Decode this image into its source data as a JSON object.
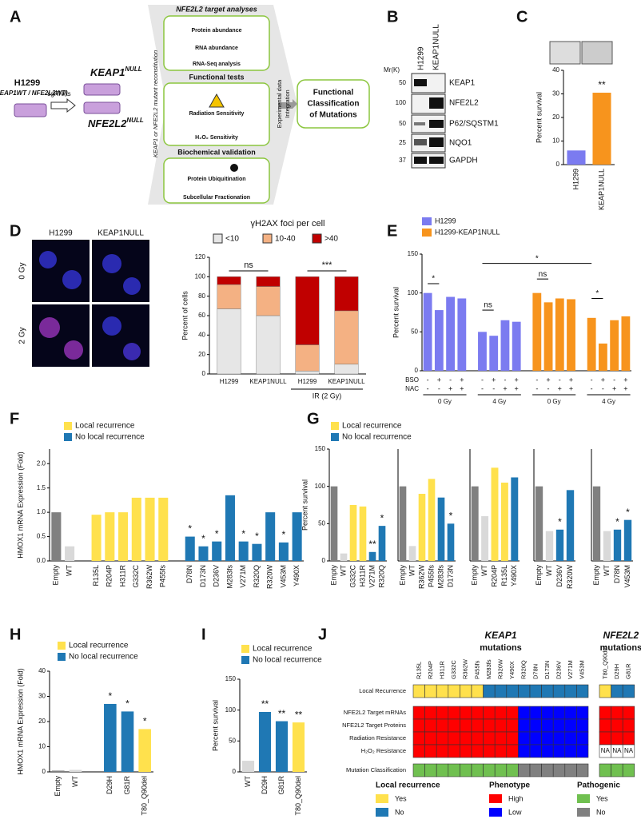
{
  "panel_labels": [
    "A",
    "B",
    "C",
    "D",
    "E",
    "F",
    "G",
    "H",
    "I",
    "J"
  ],
  "diagram": {
    "cell_line": "H1299",
    "genotype": "(KEAP1WT / NFE2L2WT)",
    "sgrna": "sgRNAs",
    "keap1_null": {
      "gene": "KEAP1",
      "sup": "NULL"
    },
    "nfe2l2_null": {
      "gene": "NFE2L2",
      "sup": "NULL"
    },
    "reconstitution": "KEAP1 or NFE2L2 mutant reconstitution",
    "boxes": [
      {
        "title": "NFE2L2 target analyses",
        "items": [
          "Protein abundance",
          "RNA abundance",
          "RNA-Seq analysis"
        ]
      },
      {
        "title": "Functional tests",
        "items": [
          "Radiation Sensitivity",
          "H₂O₂ Sensitivity"
        ]
      },
      {
        "title": "Biochemical validation",
        "items": [
          "Protein Ubiquitination",
          "Subcellular Fractionation"
        ]
      }
    ],
    "integration": [
      "Experimental data",
      "Integration"
    ],
    "result": [
      "Functional",
      "Classification",
      "of Mutations"
    ]
  },
  "blot": {
    "lanes": [
      "H1299",
      "KEAP1NULL"
    ],
    "mw_label": "Mr(K)",
    "bands": [
      {
        "mw": 50,
        "name": "KEAP1"
      },
      {
        "mw": 100,
        "name": "NFE2L2"
      },
      {
        "mw": 50,
        "name": "P62/SQSTM1"
      },
      {
        "mw": 25,
        "name": "NQO1"
      },
      {
        "mw": 37,
        "name": "GAPDH"
      }
    ]
  },
  "micrographs": {
    "columns": [
      "H1299",
      "KEAP1NULL"
    ],
    "rows": [
      "0 Gy",
      "2 Gy"
    ]
  },
  "chart_data": [
    {
      "type": "bar",
      "categories": [
        "H1299",
        "KEAP1NULL"
      ],
      "values": [
        6,
        30.5
      ],
      "colors": [
        "#7b7bf0",
        "#f7941d"
      ],
      "ylim": [
        0,
        40
      ],
      "yticks": [
        0,
        10,
        20,
        30,
        40
      ],
      "y_label": "Percent survival",
      "significance": [
        null,
        "**"
      ]
    },
    {
      "type": "stacked_bar",
      "title": "γH2AX foci per cell",
      "categories": [
        "H1299",
        "KEAP1NULL",
        "H1299",
        "KEAP1NULL"
      ],
      "series": [
        {
          "name": "<10",
          "color": "#e6e6e6",
          "values": [
            67,
            60,
            3,
            10
          ]
        },
        {
          "name": "10-40",
          "color": "#f4b183",
          "values": [
            25,
            30,
            27,
            55
          ]
        },
        {
          "name": ">40",
          "color": "#c00000",
          "values": [
            8,
            10,
            70,
            35
          ]
        }
      ],
      "ylim": [
        0,
        120
      ],
      "yticks": [
        0,
        20,
        40,
        60,
        80,
        100,
        120
      ],
      "y_label": "Percent of cells",
      "group_label": "IR (2 Gy)",
      "annotations": [
        "ns",
        "***"
      ]
    },
    {
      "type": "grouped_bar",
      "series": [
        {
          "name": "H1299",
          "color": "#7b7bf0",
          "values": [
            100,
            78,
            95,
            93,
            50,
            45,
            65,
            63
          ]
        },
        {
          "name": "H1299-KEAP1NULL",
          "color": "#f7941d",
          "values": [
            100,
            88,
            93,
            92,
            68,
            35,
            65,
            70
          ]
        }
      ],
      "treatments": [
        {
          "name": "BSO",
          "values": [
            "-",
            "+",
            "-",
            "+",
            "-",
            "+",
            "-",
            "+",
            "-",
            "+",
            "-",
            "+",
            "-",
            "+",
            "-",
            "+"
          ]
        },
        {
          "name": "NAC",
          "values": [
            "-",
            "-",
            "+",
            "+",
            "-",
            "-",
            "+",
            "+",
            "-",
            "-",
            "+",
            "+",
            "-",
            "-",
            "+",
            "+"
          ]
        }
      ],
      "groups": [
        "0 Gy",
        "4 Gy",
        "0 Gy",
        "4 Gy"
      ],
      "ylim": [
        0,
        150
      ],
      "yticks": [
        0,
        50,
        100,
        150
      ],
      "y_label": "Percent survival",
      "annotations": [
        "*",
        "ns",
        "ns",
        "*",
        "*"
      ]
    },
    {
      "type": "bar",
      "categories": [
        "Empty",
        "WT",
        null,
        "R135L",
        "R204P",
        "H311R",
        "G332C",
        "R362W",
        "P455fs",
        null,
        "D78N",
        "D173N",
        "D236V",
        "M283fs",
        "V271M",
        "R320Q",
        "R320W",
        "V453M",
        "Y490X"
      ],
      "values": [
        1.0,
        0.3,
        null,
        0.95,
        1.0,
        1.0,
        1.3,
        1.3,
        1.3,
        null,
        0.5,
        0.3,
        0.4,
        1.35,
        0.4,
        0.35,
        1.0,
        0.38,
        1.0
      ],
      "colors": [
        "#808080",
        "#d9d9d9",
        null,
        "#ffe14d",
        "#ffe14d",
        "#ffe14d",
        "#ffe14d",
        "#ffe14d",
        "#ffe14d",
        null,
        "#1f78b4",
        "#1f78b4",
        "#1f78b4",
        "#1f78b4",
        "#1f78b4",
        "#1f78b4",
        "#1f78b4",
        "#1f78b4",
        "#1f78b4"
      ],
      "significance": [
        null,
        null,
        null,
        null,
        null,
        null,
        null,
        null,
        null,
        null,
        "*",
        "*",
        "*",
        null,
        "*",
        "*",
        null,
        "*",
        null
      ],
      "ylim": [
        0,
        2.3
      ],
      "yticks": [
        {
          "value": 0,
          "label": "0.0"
        },
        0.5,
        {
          "value": 1,
          "label": "1.0"
        },
        1.5,
        {
          "value": 2,
          "label": "2.0"
        }
      ],
      "y_label": "HMOX1 mRNA Expression (Fold)",
      "legend": [
        {
          "name": "Local recurrence",
          "color": "#ffe14d"
        },
        {
          "name": "No local recurrence",
          "color": "#1f78b4"
        }
      ]
    },
    {
      "type": "bar",
      "categories": [
        "Empty",
        "WT",
        "G332C",
        "H311R",
        "V271M",
        "R320Q"
      ],
      "values": [
        100,
        10,
        75,
        73,
        12,
        47
      ],
      "colors": [
        "#808080",
        "#d9d9d9",
        "#ffe14d",
        "#ffe14d",
        "#1f78b4",
        "#1f78b4"
      ],
      "significance": [
        null,
        null,
        null,
        null,
        "**",
        "*"
      ],
      "ylim": [
        0,
        150
      ],
      "yticks": [
        0,
        50,
        100,
        150
      ],
      "y_label": "Percent survival",
      "legend": [
        {
          "name": "Local recurrence",
          "color": "#ffe14d"
        },
        {
          "name": "No local recurrence",
          "color": "#1f78b4"
        }
      ]
    },
    {
      "type": "bar",
      "categories": [
        "Empty",
        "WT",
        "R362W",
        "P455fs",
        "M283fs",
        "D173N"
      ],
      "values": [
        100,
        20,
        90,
        110,
        85,
        50
      ],
      "colors": [
        "#808080",
        "#d9d9d9",
        "#ffe14d",
        "#ffe14d",
        "#1f78b4",
        "#1f78b4"
      ],
      "significance": [
        null,
        null,
        null,
        null,
        null,
        "*"
      ],
      "ylim": [
        0,
        150
      ]
    },
    {
      "type": "bar",
      "categories": [
        "Empty",
        "WT",
        "R204P",
        "R135L",
        "Y490X"
      ],
      "values": [
        100,
        60,
        125,
        105,
        112
      ],
      "colors": [
        "#808080",
        "#d9d9d9",
        "#ffe14d",
        "#ffe14d",
        "#1f78b4"
      ],
      "ylim": [
        0,
        150
      ]
    },
    {
      "type": "bar",
      "categories": [
        "Empty",
        "WT",
        "D236V",
        "R320W"
      ],
      "values": [
        100,
        40,
        42,
        95
      ],
      "colors": [
        "#808080",
        "#d9d9d9",
        "#1f78b4",
        "#1f78b4"
      ],
      "significance": [
        null,
        null,
        "*",
        null
      ],
      "ylim": [
        0,
        150
      ]
    },
    {
      "type": "bar",
      "categories": [
        "Empty",
        "WT",
        "D78N",
        "V453M"
      ],
      "values": [
        100,
        40,
        42,
        55
      ],
      "colors": [
        "#808080",
        "#d9d9d9",
        "#1f78b4",
        "#1f78b4"
      ],
      "significance": [
        null,
        null,
        "*",
        "*"
      ],
      "ylim": [
        0,
        150
      ]
    },
    {
      "type": "bar",
      "categories": [
        "Empty",
        "WT",
        null,
        "D29H",
        "G81R",
        "T80_Q90del"
      ],
      "values": [
        0.5,
        0.8,
        null,
        27,
        24,
        17
      ],
      "colors": [
        "#808080",
        "#d9d9d9",
        null,
        "#1f78b4",
        "#1f78b4",
        "#ffe14d"
      ],
      "significance": [
        null,
        null,
        null,
        "*",
        "*",
        "*"
      ],
      "ylim": [
        0,
        40
      ],
      "yticks": [
        0,
        10,
        20,
        30,
        40
      ],
      "y_label": "HMOX1 mRNA Expression (Fold)",
      "legend": [
        {
          "name": "Local recurrence",
          "color": "#ffe14d"
        },
        {
          "name": "No local recurrence",
          "color": "#1f78b4"
        }
      ]
    },
    {
      "type": "bar",
      "categories": [
        "WT",
        "D29H",
        "G81R",
        "T80_Q90del"
      ],
      "values": [
        18,
        97,
        82,
        80
      ],
      "colors": [
        "#d9d9d9",
        "#1f78b4",
        "#1f78b4",
        "#ffe14d"
      ],
      "significance": [
        null,
        "**",
        "**",
        "**"
      ],
      "ylim": [
        0,
        150
      ],
      "yticks": [
        0,
        50,
        100,
        150
      ],
      "y_label": "Percent survival",
      "legend": [
        {
          "name": "Local recurrence",
          "color": "#ffe14d"
        },
        {
          "name": "No local recurrence",
          "color": "#1f78b4"
        }
      ]
    }
  ],
  "heatmap": {
    "keap1_title": [
      "KEAP1",
      "mutations"
    ],
    "nfe2l2_title": [
      "NFE2L2",
      "mutations"
    ],
    "keap1_columns": [
      "R135L",
      "R204P",
      "H311R",
      "G332C",
      "R362W",
      "P455fs",
      "M283fs",
      "R320W",
      "Y490X",
      "R320Q",
      "D78N",
      "D173N",
      "D236V",
      "V271M",
      "V453M"
    ],
    "nfe2l2_columns": [
      "T80_Q90del",
      "D29H",
      "G81R"
    ],
    "rows": [
      {
        "name": "Local Recurrence",
        "keap1": [
          "Yes",
          "Yes",
          "Yes",
          "Yes",
          "Yes",
          "Yes",
          "No",
          "No",
          "No",
          "No",
          "No",
          "No",
          "No",
          "No",
          "No"
        ],
        "nfe2l2": [
          "Yes",
          "No",
          "No"
        ]
      },
      {
        "name": "NFE2L2 Target mRNAs",
        "keap1": [
          "High",
          "High",
          "High",
          "High",
          "High",
          "High",
          "High",
          "High",
          "High",
          "Low",
          "Low",
          "Low",
          "Low",
          "Low",
          "Low"
        ],
        "nfe2l2": [
          "High",
          "High",
          "High"
        ]
      },
      {
        "name": "NFE2L2 Target Proteins",
        "keap1": [
          "High",
          "High",
          "High",
          "High",
          "High",
          "High",
          "High",
          "High",
          "High",
          "Low",
          "Low",
          "Low",
          "Low",
          "Low",
          "Low"
        ],
        "nfe2l2": [
          "High",
          "High",
          "High"
        ]
      },
      {
        "name": "Radiation Resistance",
        "keap1": [
          "High",
          "High",
          "High",
          "High",
          "High",
          "High",
          "High",
          "High",
          "High",
          "Low",
          "Low",
          "Low",
          "Low",
          "Low",
          "Low"
        ],
        "nfe2l2": [
          "High",
          "High",
          "High"
        ]
      },
      {
        "name": "H₂O₂ Resistance",
        "keap1": [
          "High",
          "High",
          "High",
          "High",
          "High",
          "High",
          "High",
          "High",
          "High",
          "Low",
          "Low",
          "Low",
          "Low",
          "Low",
          "Low"
        ],
        "nfe2l2": [
          "NA",
          "NA",
          "NA"
        ]
      },
      {
        "name": "Mutation Classification",
        "keap1": [
          "Yes",
          "Yes",
          "Yes",
          "Yes",
          "Yes",
          "Yes",
          "Yes",
          "Yes",
          "Yes",
          "No",
          "No",
          "No",
          "No",
          "No",
          "No"
        ],
        "nfe2l2": [
          "Yes",
          "Yes",
          "Yes"
        ]
      }
    ],
    "legends": [
      {
        "title": "Local recurrence",
        "items": [
          {
            "label": "Yes",
            "color": "#ffe14d"
          },
          {
            "label": "No",
            "color": "#1f78b4"
          }
        ]
      },
      {
        "title": "Phenotype",
        "items": [
          {
            "label": "High",
            "color": "#ff0000"
          },
          {
            "label": "Low",
            "color": "#0000ff"
          }
        ]
      },
      {
        "title": "Pathogenic",
        "items": [
          {
            "label": "Yes",
            "color": "#70c050"
          },
          {
            "label": "No",
            "color": "#808080"
          }
        ]
      }
    ]
  }
}
